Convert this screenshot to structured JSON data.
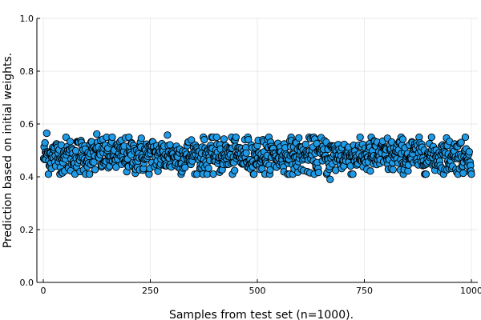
{
  "chart_data": {
    "type": "scatter",
    "title": "",
    "xlabel": "Samples from test set (n=1000).",
    "ylabel": "Prediction based on initial weights.",
    "xlim": [
      -15,
      1015
    ],
    "ylim": [
      0.0,
      1.0
    ],
    "x_ticks": [
      "0",
      "250",
      "500",
      "750",
      "1000"
    ],
    "y_ticks": [
      "0.0",
      "0.2",
      "0.4",
      "0.6",
      "0.8",
      "1.0"
    ],
    "grid": true,
    "legend": "none",
    "marker_color": "#1f9ae6",
    "series": [
      {
        "n_points": 1000,
        "x_range": [
          1,
          1000
        ],
        "center": 0.48,
        "spread": 0.035,
        "min": 0.39,
        "max": 0.57,
        "notable_points": [
          {
            "x": 8,
            "y": 0.565
          },
          {
            "x": 125,
            "y": 0.562
          },
          {
            "x": 290,
            "y": 0.558
          },
          {
            "x": 670,
            "y": 0.39
          }
        ]
      }
    ]
  }
}
